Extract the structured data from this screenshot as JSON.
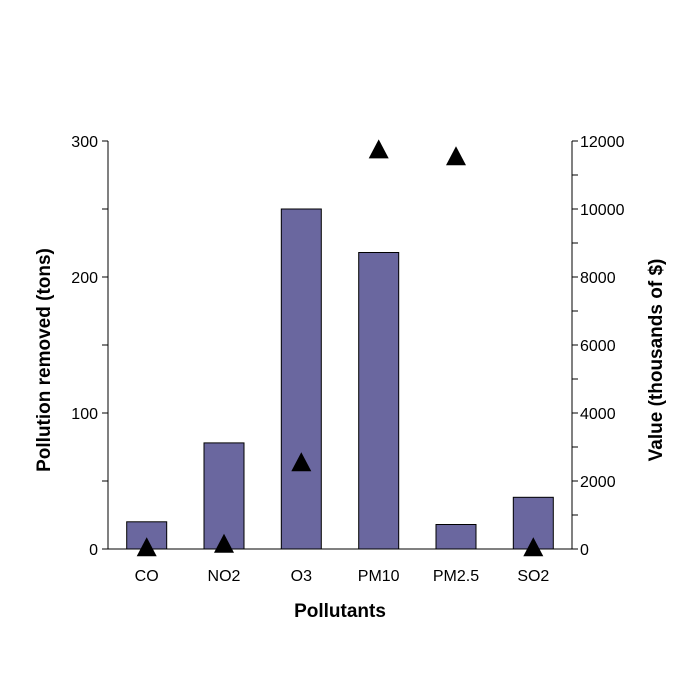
{
  "chart_data": {
    "type": "bar",
    "title": "",
    "xlabel": "Pollutants",
    "ylabel": "Pollution removed (tons)",
    "y2label": "Value (thousands of $)",
    "categories": [
      "CO",
      "NO2",
      "O3",
      "PM10",
      "PM2.5",
      "SO2"
    ],
    "ylim": [
      0,
      300
    ],
    "y2lim": [
      0,
      12000
    ],
    "yticks": [
      0,
      100,
      200,
      300
    ],
    "y2ticks": [
      0,
      2000,
      4000,
      6000,
      8000,
      10000,
      12000
    ],
    "grid": false,
    "series": [
      {
        "type": "bar",
        "axis": "left",
        "color": "#6a679f",
        "values": [
          20,
          78,
          250,
          218,
          18,
          38
        ]
      },
      {
        "type": "scatter",
        "marker": "triangle",
        "axis": "right",
        "color": "#000000",
        "values": [
          0,
          100,
          2500,
          11700,
          11500,
          0
        ]
      }
    ]
  }
}
